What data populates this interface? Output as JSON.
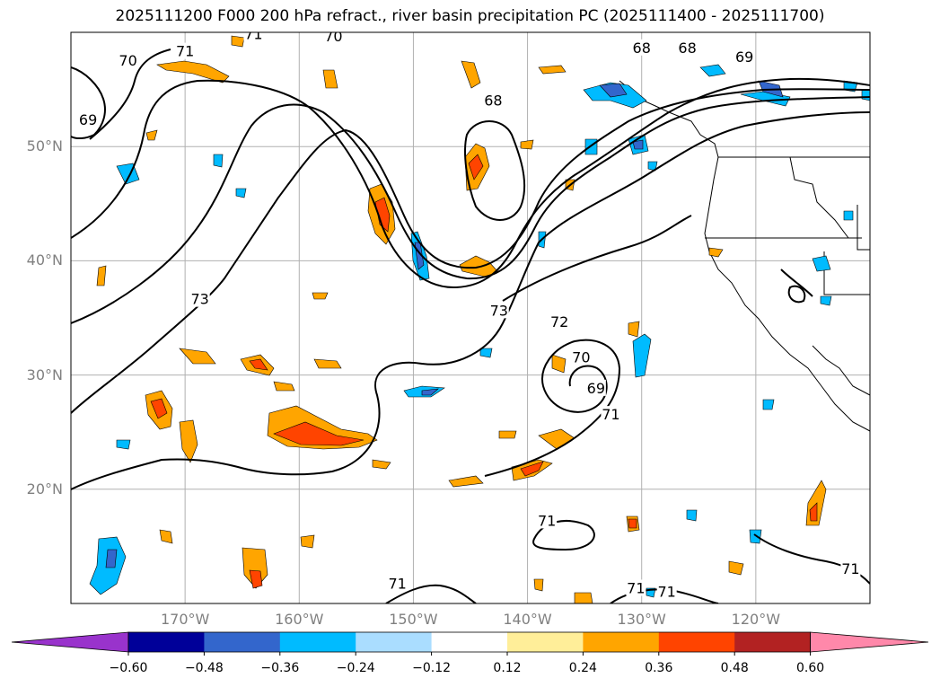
{
  "title": "2025111200 F000 200 hPa refract., river basin precipitation PC (2025111400 - 2025111700)",
  "map": {
    "lon_range": [
      -180,
      -110
    ],
    "lat_range": [
      10,
      60
    ],
    "lat_labels": [
      "20°N",
      "30°N",
      "40°N",
      "50°N"
    ],
    "lat_values": [
      20,
      30,
      40,
      50
    ],
    "lon_labels": [
      "170°W",
      "160°W",
      "150°W",
      "140°W",
      "130°W",
      "120°W"
    ],
    "lon_values": [
      -170,
      -160,
      -150,
      -140,
      -130,
      -120
    ],
    "contour_labels": [
      {
        "text": "71",
        "lon": -170,
        "lat": 58.3
      },
      {
        "text": "70",
        "lon": -175,
        "lat": 57.5
      },
      {
        "text": "69",
        "lon": -178.5,
        "lat": 52.3
      },
      {
        "text": "71",
        "lon": -164,
        "lat": 59.8
      },
      {
        "text": "70",
        "lon": -157,
        "lat": 59.6
      },
      {
        "text": "68",
        "lon": -130,
        "lat": 58.6
      },
      {
        "text": "68",
        "lon": -126,
        "lat": 58.6
      },
      {
        "text": "69",
        "lon": -121,
        "lat": 57.8
      },
      {
        "text": "68",
        "lon": -143,
        "lat": 54
      },
      {
        "text": "73",
        "lon": -168.7,
        "lat": 36.6
      },
      {
        "text": "73",
        "lon": -142.5,
        "lat": 35.6
      },
      {
        "text": "72",
        "lon": -137.2,
        "lat": 34.6
      },
      {
        "text": "70",
        "lon": -135.3,
        "lat": 31.5
      },
      {
        "text": "69",
        "lon": -134,
        "lat": 28.8
      },
      {
        "text": "71",
        "lon": -132.7,
        "lat": 26.5
      },
      {
        "text": "71",
        "lon": -138.3,
        "lat": 17.2
      },
      {
        "text": "71",
        "lon": -151.4,
        "lat": 11.7
      },
      {
        "text": "71",
        "lon": -130.5,
        "lat": 11.3
      },
      {
        "text": "71",
        "lon": -127.8,
        "lat": 11
      },
      {
        "text": "71",
        "lon": -111.7,
        "lat": 13
      }
    ]
  },
  "colorbar": {
    "colors": [
      "#9933cc",
      "#000099",
      "#3366cc",
      "#00bbff",
      "#aaddff",
      "#ffffff",
      "#ffee99",
      "#ffa500",
      "#ff4400",
      "#b22222",
      "#ff88aa"
    ],
    "ticks": [
      "−0.60",
      "−0.48",
      "−0.36",
      "−0.24",
      "−0.12",
      "0.12",
      "0.24",
      "0.36",
      "0.48",
      "0.60"
    ]
  }
}
